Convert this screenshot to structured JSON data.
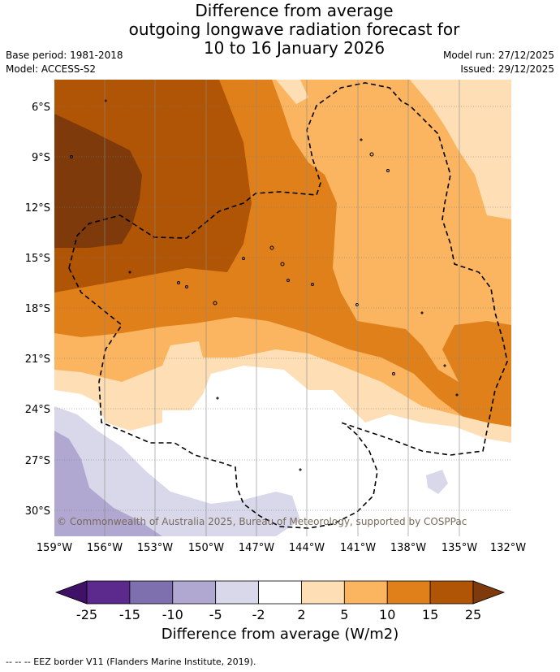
{
  "title_lines": [
    "Difference from average",
    "outgoing longwave radiation forecast for",
    "10 to 16 January 2026"
  ],
  "base_period": "Base period: 1981-2018",
  "model": "Model: ACCESS-S2",
  "model_run": "Model run: 27/12/2025",
  "issued": "Issued: 29/12/2025",
  "copyright": "© Commonwealth of Australia 2025, Bureau of Meteorology, supported by COSPPac",
  "lat_labels": [
    "6°S",
    "9°S",
    "12°S",
    "15°S",
    "18°S",
    "21°S",
    "24°S",
    "27°S",
    "30°S"
  ],
  "lon_labels": [
    "159°W",
    "156°W",
    "153°W",
    "150°W",
    "147°W",
    "144°W",
    "141°W",
    "138°W",
    "135°W",
    "132°W"
  ],
  "colorbar": {
    "ticks": [
      "-25",
      "-15",
      "-10",
      "-5",
      "-2",
      "2",
      "5",
      "10",
      "15",
      "25"
    ],
    "colors": [
      "#3f1167",
      "#5b2a8c",
      "#7e6fae",
      "#b1a8d1",
      "#d9d8eb",
      "#ffffff",
      "#fedfb5",
      "#fbb560",
      "#e0801b",
      "#b05506",
      "#7e3a0a"
    ],
    "label": "Difference from average (W/m2)"
  },
  "footer": "--  --  -- EEZ border V11 (Flanders Marine Institute, 2019)."
}
